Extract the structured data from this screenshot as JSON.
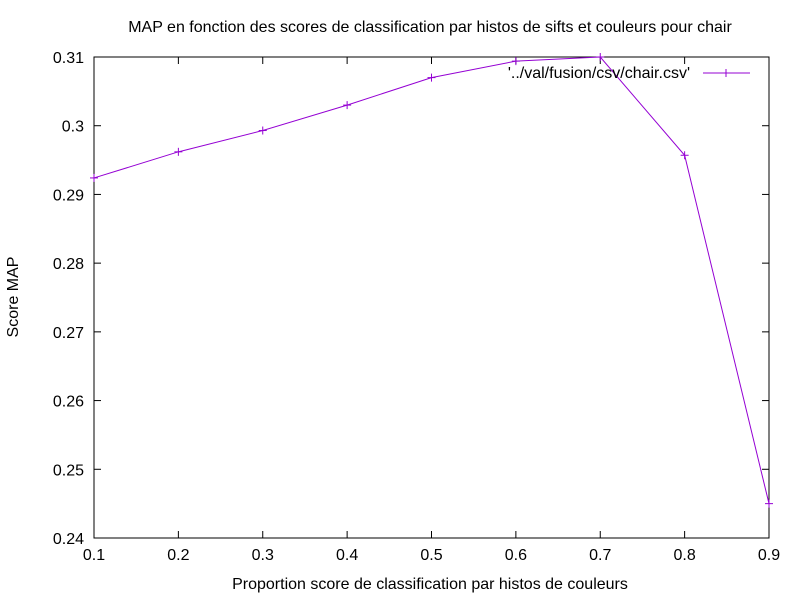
{
  "chart_data": {
    "type": "line",
    "title": "MAP en fonction des scores de classification par histos de sifts et couleurs pour chair",
    "xlabel": "Proportion score de classification par histos de couleurs",
    "ylabel": "Score MAP",
    "xlim": [
      0.1,
      0.9
    ],
    "ylim": [
      0.24,
      0.31
    ],
    "xticks": [
      "0.1",
      "0.2",
      "0.3",
      "0.4",
      "0.5",
      "0.6",
      "0.7",
      "0.8",
      "0.9"
    ],
    "yticks": [
      "0.24",
      "0.25",
      "0.26",
      "0.27",
      "0.28",
      "0.29",
      "0.3",
      "0.31"
    ],
    "grid": false,
    "legend_position": "top-right",
    "series": [
      {
        "name": "'../val/fusion/csv/chair.csv'",
        "color": "#9400d3",
        "x": [
          0.1,
          0.2,
          0.3,
          0.4,
          0.5,
          0.6,
          0.7,
          0.8,
          0.9
        ],
        "y": [
          0.2924,
          0.2962,
          0.2993,
          0.303,
          0.307,
          0.3094,
          0.31,
          0.2957,
          0.245
        ]
      }
    ]
  }
}
